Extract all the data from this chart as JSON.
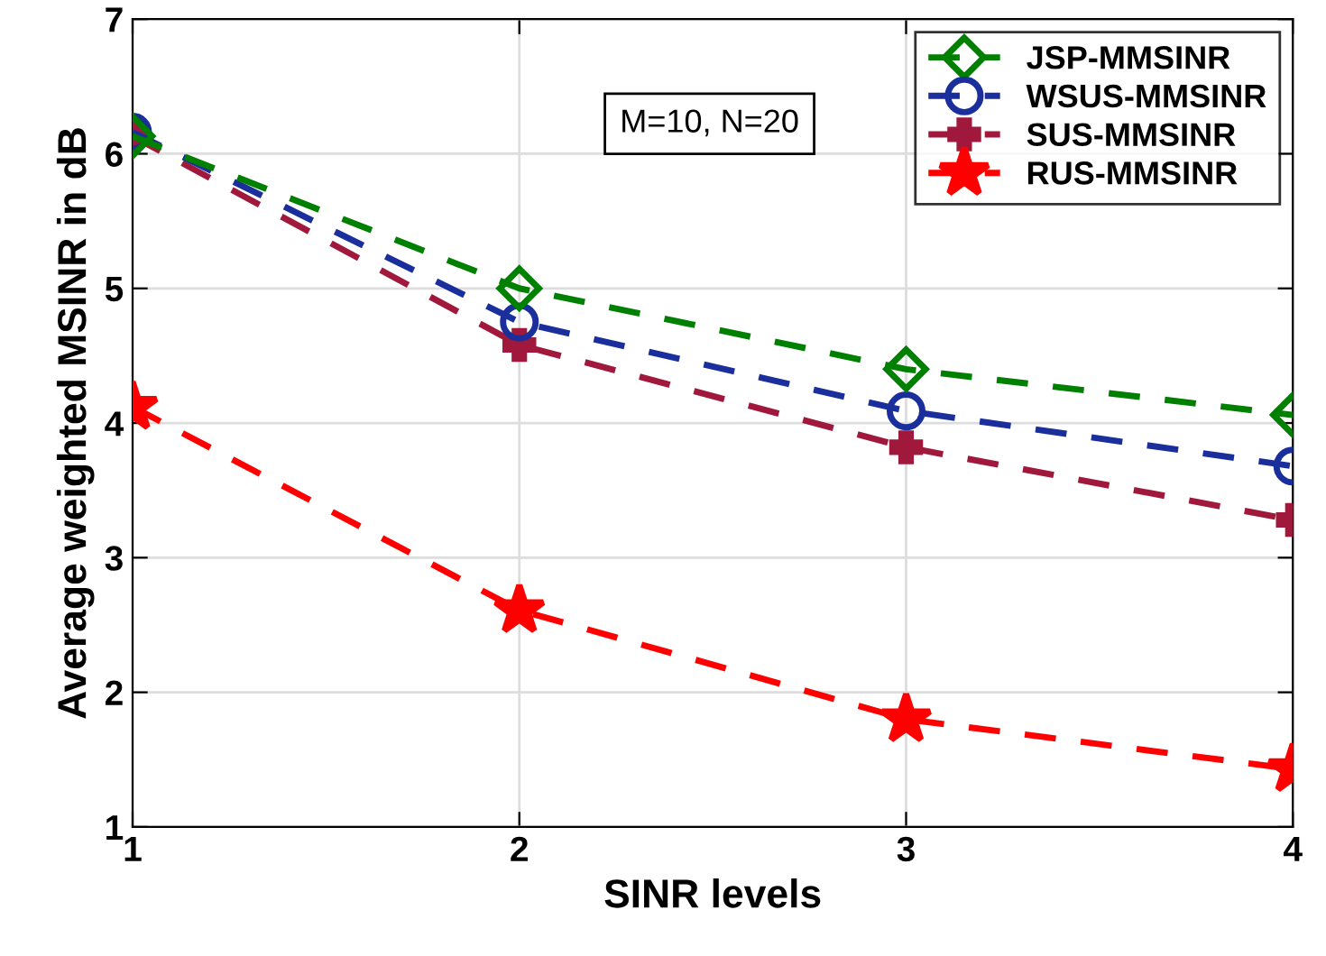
{
  "chart_data": {
    "type": "line",
    "xlabel": "SINR levels",
    "ylabel": "Average weighted MSINR in dB",
    "x": [
      1,
      2,
      3,
      4
    ],
    "xlim": [
      1,
      4
    ],
    "xticks": [
      1,
      2,
      3,
      4
    ],
    "ylim": [
      1,
      7
    ],
    "yticks": [
      1,
      2,
      3,
      4,
      5,
      6,
      7
    ],
    "grid": true,
    "legend": "top right",
    "line_style": "dashed",
    "annotations": [
      "M=10, N=20"
    ],
    "series": [
      {
        "name": "JSP-MMSINR",
        "color": "#008000",
        "marker": "diamond",
        "values": [
          6.13,
          5.0,
          4.4,
          4.06
        ]
      },
      {
        "name": "WSUS-MMSINR",
        "color": "#1a2f9c",
        "marker": "circle",
        "values": [
          6.16,
          4.75,
          4.09,
          3.68
        ]
      },
      {
        "name": "SUS-MMSINR",
        "color": "#a0193c",
        "marker": "cross",
        "values": [
          6.13,
          4.58,
          3.82,
          3.28
        ]
      },
      {
        "name": "RUS-MMSINR",
        "color": "#ff0000",
        "marker": "star",
        "values": [
          4.12,
          2.61,
          1.8,
          1.43
        ]
      }
    ]
  }
}
